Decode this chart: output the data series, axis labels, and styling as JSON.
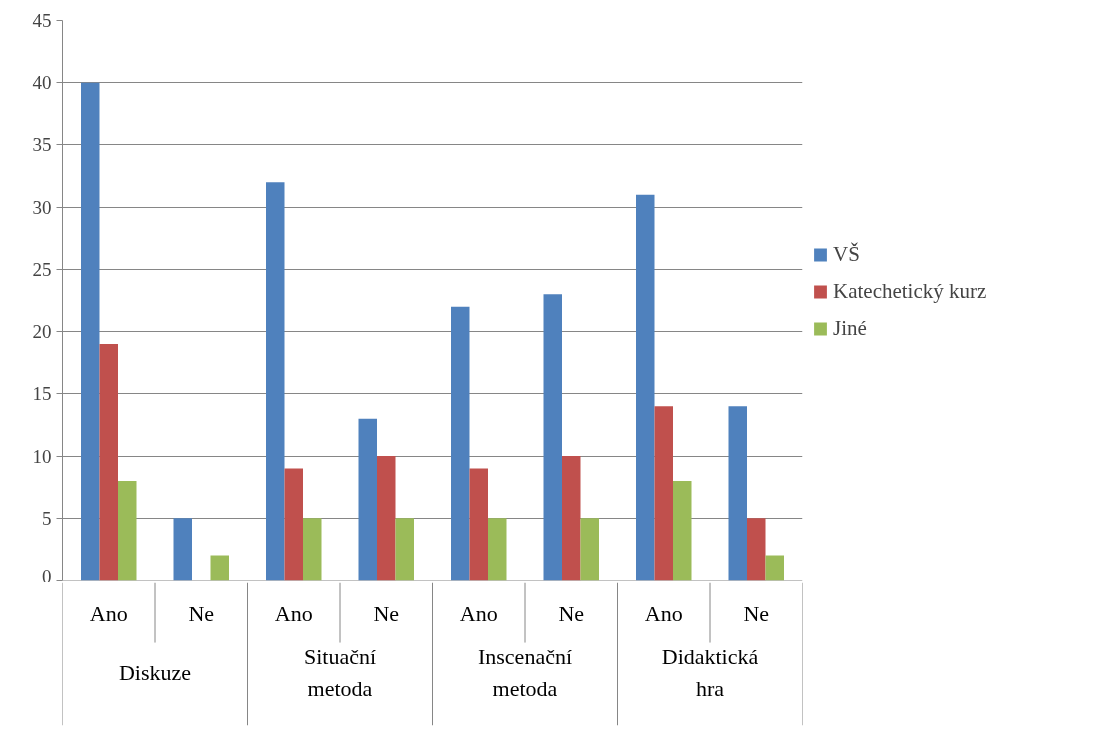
{
  "chart_data": {
    "type": "bar",
    "categories": [
      "Ano",
      "Ne",
      "Ano",
      "Ne",
      "Ano",
      "Ne",
      "Ano",
      "Ne"
    ],
    "annotations": [
      "Diskuze",
      "Situační metoda",
      "Inscenační metoda",
      "Didaktická hra"
    ],
    "series": [
      {
        "name": "VŠ",
        "color": "#4f81bd",
        "values": [
          40,
          5,
          32,
          13,
          22,
          23,
          31,
          14
        ]
      },
      {
        "name": "Katechetický kurz",
        "color": "#c0504d",
        "values": [
          19,
          0,
          9,
          10,
          9,
          10,
          14,
          5
        ]
      },
      {
        "name": "Jiné",
        "color": "#9bbb59",
        "values": [
          8,
          2,
          5,
          5,
          5,
          5,
          8,
          2
        ]
      }
    ],
    "ylim": [
      0,
      45
    ],
    "yticks": [
      0,
      5,
      10,
      15,
      20,
      25,
      30,
      35,
      40,
      45
    ],
    "grid": "y",
    "legend": "right"
  }
}
